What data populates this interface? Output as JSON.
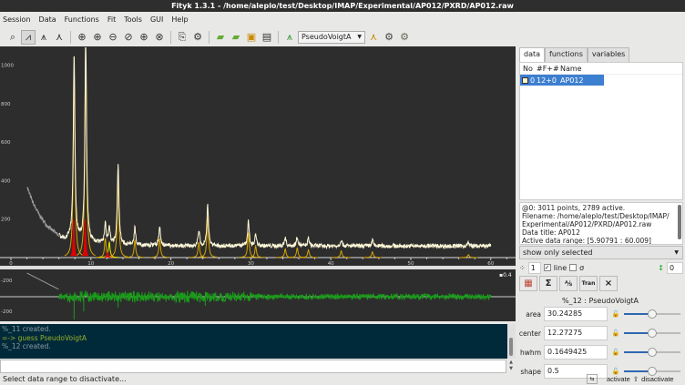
{
  "window": {
    "title": "Fityk 1.3.1 - /home/aleplo/test/Desktop/IMAP/Experimental/AP012/PXRD/AP012.raw"
  },
  "menu": [
    "Session",
    "Data",
    "Functions",
    "Fit",
    "Tools",
    "GUI",
    "Help"
  ],
  "toolbar": {
    "function_type": "PseudoVoigtA",
    "icons": [
      "zoom-all",
      "data-range-mode",
      "add-peak-mode",
      "peak-tool",
      "zoom-in",
      "zoom-h",
      "zoom-v",
      "zoom-prev",
      "zoom-box",
      "zoom-out",
      "edit-config",
      "settings",
      "load-data",
      "recent-data",
      "export-plot",
      "edit-data",
      "guess-peak",
      "run-fit",
      "undo-fit"
    ]
  },
  "plot": {
    "x_ticks": [
      0,
      10,
      20,
      30,
      40,
      50,
      60
    ],
    "y_ticks": [
      200,
      400,
      600,
      800,
      1000
    ],
    "residual_y_ticks": [
      "-200",
      "-200"
    ],
    "residual_label": "▪0.4",
    "colors": {
      "data": "#fff8d8",
      "inactive": "#9a9a9a",
      "peaks": "#d6a400",
      "selected_peak": "#e8e800",
      "model": "#e00000",
      "residual": "#1a9a1a"
    }
  },
  "chart_data": {
    "type": "line",
    "xlim": [
      0,
      62
    ],
    "ylim": [
      0,
      1060
    ],
    "background": {
      "start": 370,
      "decay_x": [
        2,
        7
      ],
      "level": 60
    },
    "inactive_until": 6,
    "peaks": [
      {
        "x": 7.9,
        "h": 980
      },
      {
        "x": 9.35,
        "h": 1080
      },
      {
        "x": 11.8,
        "h": 100
      },
      {
        "x": 12.3,
        "h": 80
      },
      {
        "x": 13.4,
        "h": 410
      },
      {
        "x": 15.5,
        "h": 90
      },
      {
        "x": 18.6,
        "h": 100
      },
      {
        "x": 23.5,
        "h": 80
      },
      {
        "x": 24.6,
        "h": 210
      },
      {
        "x": 29.7,
        "h": 130
      },
      {
        "x": 30.6,
        "h": 60
      },
      {
        "x": 34.3,
        "h": 45
      },
      {
        "x": 35.8,
        "h": 50
      },
      {
        "x": 37.2,
        "h": 40
      },
      {
        "x": 41.3,
        "h": 35
      },
      {
        "x": 45.2,
        "h": 30
      },
      {
        "x": 57.2,
        "h": 15
      }
    ]
  },
  "console": {
    "lines": [
      {
        "text": "%_11 created.",
        "type": "out"
      },
      {
        "text": "=-> guess PseudoVoigtA",
        "type": "cmd"
      },
      {
        "text": "%_12 created.",
        "type": "out"
      }
    ],
    "input": ""
  },
  "status": {
    "text": "Select data range to disactivate..."
  },
  "side": {
    "tabs": [
      "data",
      "functions",
      "variables"
    ],
    "active_tab": "data",
    "table": {
      "headers": [
        "No",
        "#F+#",
        "Name"
      ],
      "rows": [
        {
          "no": "0",
          "f": "12+0",
          "name": "AP012"
        }
      ]
    },
    "info": [
      "@0: 3011 points, 2789 active.",
      "Filename: /home/aleplo/test/Desktop/IMAP/",
      "Experimental/AP012/PXRD/AP012.raw",
      "Data title: AP012",
      "Active data range: [5.90791 : 60.009]"
    ],
    "show_select": "show only selected",
    "point_size": "1",
    "line_label": "line",
    "line_checked": true,
    "sigma_label": "σ",
    "sigma_checked": false,
    "shift": "0",
    "function_header": "%_12 : PseudoVoigtA",
    "params": [
      {
        "name": "area",
        "value": "30.24285",
        "slider": 0.5
      },
      {
        "name": "center",
        "value": "12.27275",
        "slider": 0.5
      },
      {
        "name": "hwhm",
        "value": "0.1649425",
        "slider": 0.5
      },
      {
        "name": "shape",
        "value": "0.5",
        "slider": 0.5
      }
    ],
    "activate": "activate",
    "disactivate": "disactivate"
  }
}
